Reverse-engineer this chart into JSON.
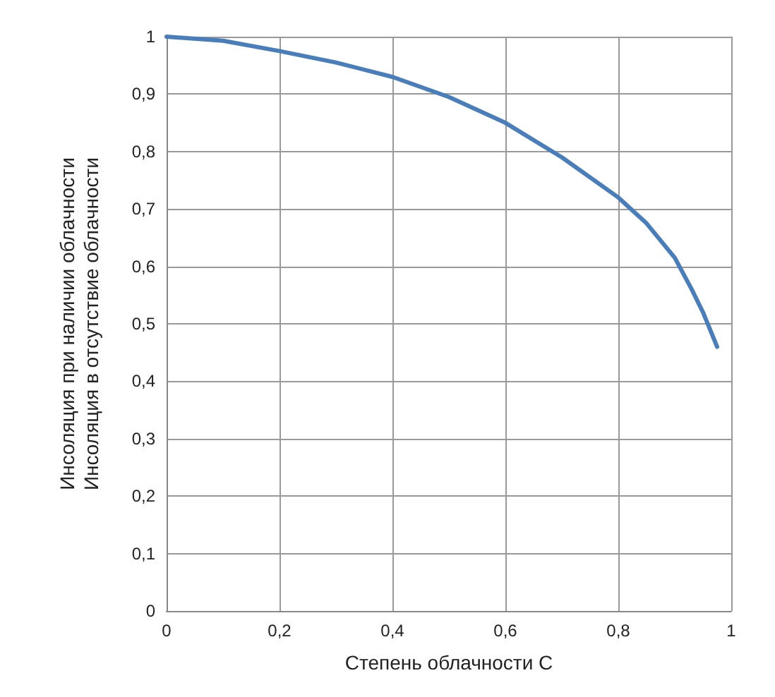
{
  "chart_data": {
    "type": "line",
    "xlabel": "Степень облачности С",
    "ylabel": "Инсоляция при наличии облачности\nИнсоляция в отсутствие облачности",
    "x": [
      0,
      0.1,
      0.2,
      0.3,
      0.4,
      0.5,
      0.6,
      0.7,
      0.8,
      0.85,
      0.9,
      0.93,
      0.95,
      0.975
    ],
    "series": [
      {
        "color": "#4a7ebb",
        "values": [
          1,
          0.993,
          0.975,
          0.955,
          0.93,
          0.895,
          0.85,
          0.79,
          0.72,
          0.675,
          0.615,
          0.56,
          0.52,
          0.46
        ]
      }
    ],
    "xlim": [
      0,
      1
    ],
    "xticks": [
      0,
      {
        "value": 0.2,
        "label": "0,2"
      },
      {
        "value": 0.4,
        "label": "0,4"
      },
      {
        "value": 0.6,
        "label": "0,6"
      },
      {
        "value": 0.8,
        "label": "0,8"
      },
      1
    ],
    "ylim": [
      0,
      1
    ],
    "yticks": [
      0,
      {
        "value": 0.1,
        "label": "0,1"
      },
      {
        "value": 0.2,
        "label": "0,2"
      },
      {
        "value": 0.3,
        "label": "0,3"
      },
      {
        "value": 0.4,
        "label": "0,4"
      },
      {
        "value": 0.5,
        "label": "0,5"
      },
      {
        "value": 0.6,
        "label": "0,6"
      },
      {
        "value": 0.7,
        "label": "0,7"
      },
      {
        "value": 0.8,
        "label": "0,8"
      },
      {
        "value": 0.9,
        "label": "0,9"
      },
      1
    ],
    "grid": true,
    "marker": "none",
    "line_style": "solid"
  }
}
